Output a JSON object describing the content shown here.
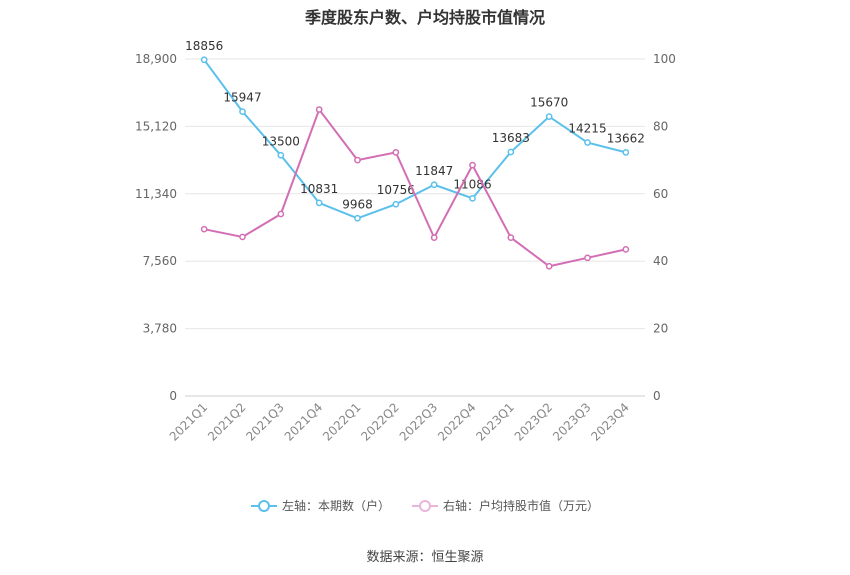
{
  "chart_data": {
    "type": "line",
    "title": "季度股东户数、户均持股市值情况",
    "categories": [
      "2021Q1",
      "2021Q2",
      "2021Q3",
      "2021Q4",
      "2022Q1",
      "2022Q2",
      "2022Q3",
      "2022Q4",
      "2023Q1",
      "2023Q2",
      "2023Q3",
      "2023Q4"
    ],
    "series": [
      {
        "name": "左轴：本期数（户）",
        "axis": "left",
        "color": "#5bc0eb",
        "values": [
          18856,
          15947,
          13500,
          10831,
          9968,
          10756,
          11847,
          11086,
          13683,
          15670,
          14215,
          13662
        ],
        "data_labels": [
          "18856",
          "15947",
          "13500",
          "10831",
          "9968",
          "10756",
          "11847",
          "11086",
          "13683",
          "15670",
          "14215",
          "13662"
        ]
      },
      {
        "name": "右轴：户均持股市值（万元）",
        "axis": "right",
        "color": "#d36eb4",
        "values": [
          49.5,
          47.2,
          54.0,
          85.0,
          70.0,
          72.3,
          47.0,
          68.5,
          47.0,
          38.5,
          41.0,
          43.5
        ]
      }
    ],
    "left_axis": {
      "min": 0,
      "max": 18900,
      "ticks": [
        0,
        3780,
        7560,
        11340,
        15120,
        18900
      ],
      "tick_labels": [
        "0",
        "3,780",
        "7,560",
        "11,340",
        "15,120",
        "18,900"
      ]
    },
    "right_axis": {
      "min": 0,
      "max": 100,
      "ticks": [
        0,
        20,
        40,
        60,
        80,
        100
      ],
      "tick_labels": [
        "0",
        "20",
        "40",
        "60",
        "80",
        "100"
      ]
    },
    "grid": true,
    "legend_position": "bottom"
  },
  "source": "数据来源：恒生聚源"
}
